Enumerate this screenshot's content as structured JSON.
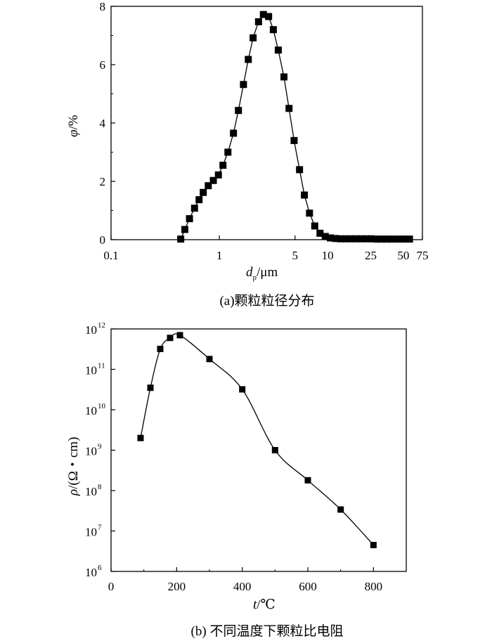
{
  "chart_data": [
    {
      "type": "line",
      "caption": "(a)颗粒粒径分布",
      "xlabel_main": "d",
      "xlabel_sub": "p",
      "xlabel_unit": "/μm",
      "ylabel_main": "φ",
      "ylabel_unit": "/%",
      "xscale": "log",
      "xlim": [
        0.1,
        75
      ],
      "ylim": [
        0,
        8
      ],
      "xticks": [
        {
          "v": 0.1,
          "label": "0.1"
        },
        {
          "v": 1,
          "label": "1"
        },
        {
          "v": 5,
          "label": "5"
        },
        {
          "v": 10,
          "label": "10"
        },
        {
          "v": 25,
          "label": "25"
        },
        {
          "v": 50,
          "label": "50"
        },
        {
          "v": 75,
          "label": "75"
        }
      ],
      "yticks": [
        {
          "v": 0,
          "label": "0"
        },
        {
          "v": 2,
          "label": "2"
        },
        {
          "v": 4,
          "label": "4"
        },
        {
          "v": 6,
          "label": "6"
        },
        {
          "v": 8,
          "label": "8"
        }
      ],
      "marker": "square",
      "series": [
        {
          "x": [
            0.44,
            0.48,
            0.53,
            0.59,
            0.65,
            0.71,
            0.79,
            0.88,
            0.98,
            1.08,
            1.2,
            1.35,
            1.5,
            1.67,
            1.85,
            2.05,
            2.3,
            2.55,
            2.85,
            3.15,
            3.5,
            3.95,
            4.4,
            4.9,
            5.5,
            6.1,
            6.8,
            7.6,
            8.5,
            9.5,
            10.6,
            11.8,
            13.2,
            14.7,
            16.4,
            18.3,
            20.4,
            22.7,
            25.3,
            28.2,
            31.5,
            35,
            39,
            44,
            50,
            57
          ],
          "y": [
            0.02,
            0.35,
            0.72,
            1.08,
            1.37,
            1.62,
            1.85,
            2.03,
            2.22,
            2.55,
            3.0,
            3.65,
            4.43,
            5.32,
            6.18,
            6.92,
            7.47,
            7.72,
            7.65,
            7.2,
            6.5,
            5.58,
            4.5,
            3.4,
            2.4,
            1.53,
            0.91,
            0.47,
            0.22,
            0.11,
            0.06,
            0.04,
            0.03,
            0.03,
            0.03,
            0.03,
            0.03,
            0.03,
            0.03,
            0.02,
            0.02,
            0.02,
            0.02,
            0.02,
            0.02,
            0.02
          ]
        }
      ]
    },
    {
      "type": "line",
      "caption": "(b) 不同温度下颗粒比电阻",
      "xlabel_main": "t",
      "xlabel_unit": "/℃",
      "ylabel_main": "ρ",
      "ylabel_unit": "/(Ω・cm)",
      "yscale": "log",
      "xlim": [
        0,
        900
      ],
      "ylim_exp": [
        6,
        12
      ],
      "xticks": [
        {
          "v": 0,
          "label": "0"
        },
        {
          "v": 200,
          "label": "200"
        },
        {
          "v": 400,
          "label": "400"
        },
        {
          "v": 600,
          "label": "600"
        },
        {
          "v": 800,
          "label": "800"
        }
      ],
      "yticks": [
        {
          "e": 6,
          "base": "10",
          "exp": "6"
        },
        {
          "e": 7,
          "base": "10",
          "exp": "7"
        },
        {
          "e": 8,
          "base": "10",
          "exp": "8"
        },
        {
          "e": 9,
          "base": "10",
          "exp": "9"
        },
        {
          "e": 10,
          "base": "10",
          "exp": "10"
        },
        {
          "e": 11,
          "base": "10",
          "exp": "11"
        },
        {
          "e": 12,
          "base": "10",
          "exp": "12"
        }
      ],
      "marker": "square",
      "series": [
        {
          "x": [
            90,
            120,
            150,
            180,
            210,
            300,
            400,
            500,
            600,
            700,
            800
          ],
          "y": [
            2000000000.0,
            35000000000.0,
            320000000000.0,
            600000000000.0,
            700000000000.0,
            180000000000.0,
            32000000000.0,
            1000000000.0,
            180000000.0,
            34000000.0,
            4500000.0
          ]
        }
      ]
    }
  ]
}
